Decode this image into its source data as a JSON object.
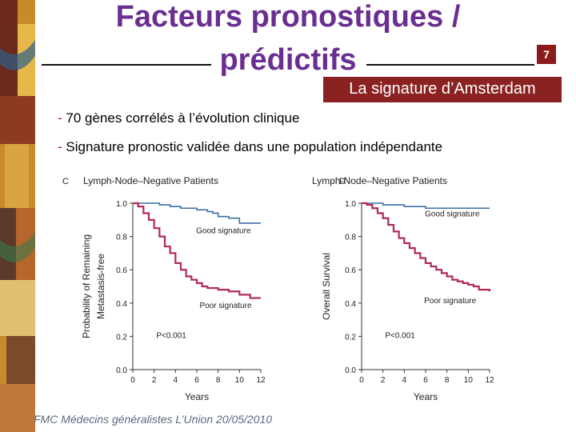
{
  "title": {
    "line1": "Facteurs pronostiques /",
    "line2": "prédictifs"
  },
  "slide_number": "7",
  "subtitle": "La signature d’Amsterdam",
  "bullets": [
    {
      "dash": "-",
      "text": " 70 gènes corrélés à l’évolution clinique"
    },
    {
      "dash": "-",
      "text": " Signature pronostic validée dans une population indépendante"
    }
  ],
  "footer": "FMC Médecins généralistes L’Union 20/05/2010",
  "colors": {
    "title": "#6a2e91",
    "good": "#3d6fa3",
    "poor": "#b02a52",
    "badge": "#8b2222"
  },
  "chart_data": [
    {
      "type": "line",
      "panel": "C",
      "title": "Lymph-Node–Negative Patients",
      "xlabel": "Years",
      "ylabel_lines": [
        "Probability of Remaining",
        "Metastasis-free"
      ],
      "xlim": [
        0,
        12
      ],
      "ylim": [
        0,
        1
      ],
      "xticks": [
        "0",
        "2",
        "4",
        "6",
        "8",
        "10",
        "12"
      ],
      "yticks": [
        "0.0",
        "0.2",
        "0.4",
        "0.6",
        "0.8",
        "1.0"
      ],
      "annotation": "P<0.001",
      "series": [
        {
          "name": "Good signature",
          "x": [
            0,
            1.5,
            2.5,
            3.5,
            4.5,
            5,
            6,
            7,
            7.5,
            8,
            9,
            10,
            12
          ],
          "y": [
            1.0,
            1.0,
            0.99,
            0.98,
            0.97,
            0.97,
            0.96,
            0.95,
            0.94,
            0.92,
            0.91,
            0.88,
            0.88
          ]
        },
        {
          "name": "Poor signature",
          "x": [
            0,
            0.5,
            1,
            1.5,
            2,
            2.5,
            3,
            3.5,
            4,
            4.5,
            5,
            5.5,
            6,
            6.5,
            7,
            8,
            9,
            10,
            11,
            12
          ],
          "y": [
            1.0,
            0.98,
            0.94,
            0.9,
            0.85,
            0.8,
            0.74,
            0.7,
            0.64,
            0.6,
            0.56,
            0.54,
            0.52,
            0.5,
            0.49,
            0.48,
            0.47,
            0.45,
            0.43,
            0.43
          ]
        }
      ]
    },
    {
      "type": "line",
      "panel": "D",
      "title": "Lymph-Node–Negative Patients",
      "xlabel": "Years",
      "ylabel_lines": [
        "Overall Survival"
      ],
      "xlim": [
        0,
        12
      ],
      "ylim": [
        0,
        1
      ],
      "xticks": [
        "0",
        "2",
        "4",
        "6",
        "8",
        "10",
        "12"
      ],
      "yticks": [
        "0.0",
        "0.2",
        "0.4",
        "0.6",
        "0.8",
        "1.0"
      ],
      "annotation": "P<0.001",
      "series": [
        {
          "name": "Good signature",
          "x": [
            0,
            1,
            2,
            3,
            4,
            5,
            6,
            7,
            8,
            9,
            10,
            12
          ],
          "y": [
            1.0,
            1.0,
            0.99,
            0.99,
            0.98,
            0.98,
            0.97,
            0.97,
            0.97,
            0.97,
            0.97,
            0.97
          ]
        },
        {
          "name": "Poor signature",
          "x": [
            0,
            0.5,
            1,
            1.5,
            2,
            2.5,
            3,
            3.5,
            4,
            4.5,
            5,
            5.5,
            6,
            6.5,
            7,
            7.5,
            8,
            8.5,
            9,
            9.5,
            10,
            10.5,
            11,
            12
          ],
          "y": [
            1.0,
            0.99,
            0.97,
            0.94,
            0.91,
            0.87,
            0.83,
            0.79,
            0.76,
            0.73,
            0.7,
            0.67,
            0.64,
            0.62,
            0.6,
            0.58,
            0.56,
            0.54,
            0.53,
            0.52,
            0.51,
            0.5,
            0.48,
            0.47
          ]
        }
      ]
    }
  ]
}
